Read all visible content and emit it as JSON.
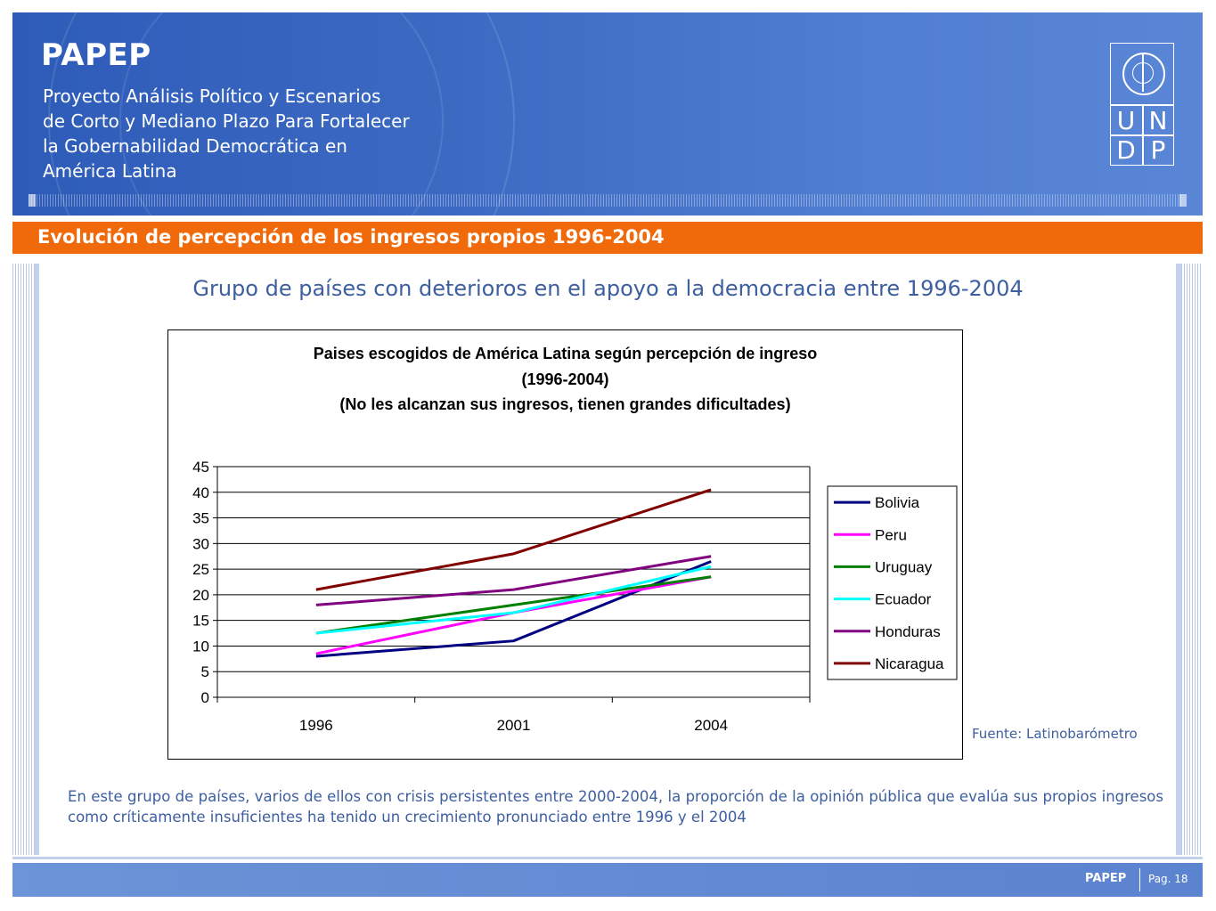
{
  "header": {
    "brand": "PAPEP",
    "subtitle_lines": [
      "Proyecto Análisis Político y Escenarios",
      "de Corto y Mediano Plazo Para Fortalecer",
      "la Gobernabilidad Democrática en",
      "América Latina"
    ],
    "logo_letters": [
      "U",
      "N",
      "D",
      "P"
    ],
    "logo_icon": "un-globe-icon"
  },
  "section_bar": {
    "label": "Evolución de percepción de los ingresos propios 1996-2004"
  },
  "slide_title": "Grupo de países con deterioros en el apoyo a la democracia entre 1996-2004",
  "chart_data": {
    "type": "line",
    "title_lines": [
      "Paises escogidos de América Latina según percepción de ingreso",
      "(1996-2004)",
      "(No les alcanzan sus ingresos, tienen grandes dificultades)"
    ],
    "categories": [
      "1996",
      "2001",
      "2004"
    ],
    "ylim": [
      0,
      45
    ],
    "yticks": [
      0,
      5,
      10,
      15,
      20,
      25,
      30,
      35,
      40,
      45
    ],
    "grid": true,
    "legend_position": "right",
    "series": [
      {
        "name": "Bolivia",
        "values": [
          8,
          11,
          26.5
        ],
        "color": "#000080"
      },
      {
        "name": "Peru",
        "values": [
          8.5,
          16.5,
          23.5
        ],
        "color": "#ff00ff"
      },
      {
        "name": "Uruguay",
        "values": [
          12.5,
          18,
          23.5
        ],
        "color": "#008000"
      },
      {
        "name": "Ecuador",
        "values": [
          12.5,
          16.5,
          25.5
        ],
        "color": "#00ffff"
      },
      {
        "name": "Honduras",
        "values": [
          18,
          21,
          27.5
        ],
        "color": "#800080"
      },
      {
        "name": "Nicaragua",
        "values": [
          21,
          28,
          40.5
        ],
        "color": "#800000"
      }
    ]
  },
  "source": "Fuente:  Latinobarómetro",
  "body_text": "En este grupo de países, varios de ellos con crisis persistentes entre 2000-2004, la proporción de  la opinión pública que evalúa sus propios ingresos como críticamente  insuficientes ha tenido un crecimiento  pronunciado entre 1996 y el 2004",
  "footer": {
    "brand": "PAPEP",
    "page": "Pag. 18"
  }
}
